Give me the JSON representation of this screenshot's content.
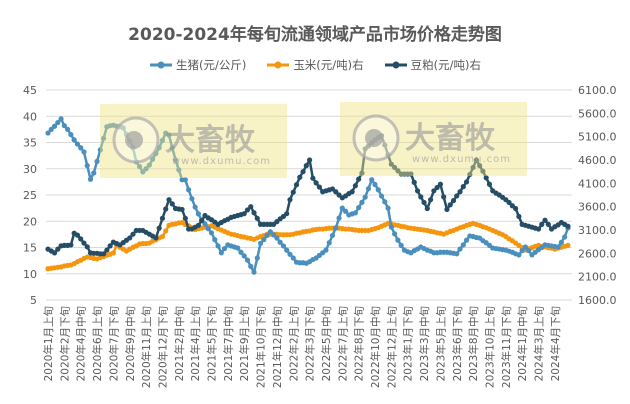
{
  "chart_data": {
    "type": "line",
    "title": "2020-2024年每旬流通领域产品市场价格走势图",
    "xlabel": "",
    "ylabel": "",
    "grid": true,
    "legend_position": "top",
    "y_left": {
      "min": 5,
      "max": 45,
      "step": 5,
      "ticks": [
        "5",
        "10",
        "15",
        "20",
        "25",
        "30",
        "35",
        "40",
        "45"
      ]
    },
    "y_right": {
      "min": 1600,
      "max": 6100,
      "step": 500,
      "ticks": [
        "1600.0",
        "2100.0",
        "2600.0",
        "3100.0",
        "3600.0",
        "4100.0",
        "4600.0",
        "5100.0",
        "5600.0",
        "6100.0"
      ]
    },
    "x_tick_every": 5,
    "x_tick_labels": [
      "2020年1月上旬",
      "2020年2月下旬",
      "2020年4月中旬",
      "2020年6月上旬",
      "2020年7月下旬",
      "2020年9月中旬",
      "2020年11月上旬",
      "2020年12月下旬",
      "2021年2月中旬",
      "2021年4月上旬",
      "2021年5月下旬",
      "2021年7月中旬",
      "2021年9月上旬",
      "2021年10月下旬",
      "2021年12月中旬",
      "2022年2月上旬",
      "2022年3月下旬",
      "2022年5月中旬",
      "2022年7月上旬",
      "2022年8月下旬",
      "2022年10月中旬",
      "2022年12月上旬",
      "2023年1月下旬",
      "2023年3月中旬",
      "2023年5月上旬",
      "2023年6月下旬",
      "2023年8月中旬",
      "2023年10月上旬",
      "2023年11月下旬",
      "2024年1月中旬",
      "2024年3月上旬",
      "2024年4月下旬"
    ],
    "series": [
      {
        "name": "生猪(元/公斤)",
        "axis": "left",
        "color": "#4a8fbd",
        "values": [
          36.8,
          37.5,
          38.1,
          38.8,
          39.5,
          38.2,
          37.5,
          36.5,
          35.5,
          34.7,
          34.0,
          33.2,
          30.6,
          28.0,
          29.2,
          31.4,
          33.6,
          35.8,
          38.0,
          38.2,
          38.3,
          38.1,
          38.0,
          37.8,
          36.5,
          35.3,
          34.0,
          31.3,
          30.4,
          29.4,
          30.0,
          30.7,
          31.8,
          32.9,
          34.0,
          35.4,
          36.8,
          36.4,
          34.0,
          31.7,
          29.8,
          27.9,
          27.9,
          26.0,
          24.3,
          22.7,
          21.4,
          20.2,
          19.5,
          18.6,
          17.8,
          16.5,
          15.3,
          14.0,
          14.8,
          15.5,
          15.3,
          15.1,
          14.9,
          14.1,
          13.4,
          12.6,
          11.4,
          10.3,
          13.0,
          15.8,
          16.5,
          17.3,
          18.0,
          17.4,
          16.8,
          16.0,
          15.3,
          14.5,
          13.7,
          13.0,
          12.2,
          12.1,
          12.1,
          12.0,
          12.3,
          12.7,
          13.0,
          13.5,
          14.0,
          14.5,
          15.9,
          17.3,
          18.7,
          20.6,
          22.5,
          21.9,
          21.2,
          21.4,
          21.6,
          22.6,
          23.6,
          24.6,
          26.2,
          27.9,
          27.0,
          26.0,
          24.8,
          23.7,
          22.5,
          18.9,
          17.6,
          16.4,
          15.4,
          14.5,
          14.2,
          14.0,
          14.4,
          14.7,
          15.1,
          14.8,
          14.5,
          14.3,
          14.0,
          14.0,
          14.1,
          14.1,
          14.1,
          14.0,
          13.9,
          13.8,
          14.7,
          15.5,
          16.4,
          17.2,
          17.1,
          16.9,
          16.8,
          16.3,
          15.9,
          15.4,
          14.9,
          14.8,
          14.7,
          14.6,
          14.5,
          14.3,
          14.1,
          13.8,
          13.6,
          14.4,
          15.1,
          14.4,
          13.6,
          14.1,
          14.6,
          15.0,
          15.5,
          15.4,
          15.3,
          15.2,
          15.1,
          16.0,
          17.0,
          18.7
        ]
      },
      {
        "name": "玉米(元/吨)右",
        "axis": "right",
        "color": "#f5960f",
        "values": [
          2270,
          2280,
          2290,
          2300,
          2310,
          2330,
          2340,
          2350,
          2380,
          2420,
          2450,
          2490,
          2520,
          2510,
          2490,
          2480,
          2510,
          2530,
          2560,
          2580,
          2610,
          2770,
          2730,
          2690,
          2650,
          2690,
          2730,
          2760,
          2800,
          2810,
          2810,
          2820,
          2860,
          2890,
          2930,
          2960,
          3080,
          3200,
          3220,
          3230,
          3250,
          3260,
          3220,
          3190,
          3150,
          3110,
          3130,
          3140,
          3160,
          3170,
          3190,
          3160,
          3130,
          3100,
          3070,
          3040,
          3010,
          3000,
          2980,
          2960,
          2950,
          2930,
          2920,
          2900,
          2930,
          2960,
          2980,
          3010,
          3010,
          3010,
          3010,
          3000,
          3000,
          3000,
          3000,
          3010,
          3030,
          3040,
          3060,
          3070,
          3080,
          3100,
          3110,
          3120,
          3120,
          3130,
          3140,
          3140,
          3150,
          3140,
          3130,
          3120,
          3120,
          3110,
          3100,
          3090,
          3090,
          3090,
          3090,
          3110,
          3130,
          3150,
          3180,
          3210,
          3240,
          3230,
          3210,
          3200,
          3180,
          3170,
          3150,
          3140,
          3130,
          3120,
          3110,
          3100,
          3090,
          3070,
          3060,
          3040,
          3030,
          3010,
          3040,
          3070,
          3090,
          3120,
          3150,
          3170,
          3200,
          3220,
          3240,
          3220,
          3200,
          3170,
          3150,
          3120,
          3090,
          3060,
          3030,
          3000,
          2960,
          2910,
          2870,
          2820,
          2770,
          2720,
          2670,
          2700,
          2720,
          2750,
          2770,
          2750,
          2740,
          2720,
          2710,
          2690,
          2710,
          2730,
          2750,
          2770
        ]
      },
      {
        "name": "豆粕(元/吨)右",
        "axis": "right",
        "color": "#264d66",
        "values": [
          2690,
          2650,
          2610,
          2690,
          2760,
          2770,
          2770,
          2780,
          3030,
          2990,
          2910,
          2820,
          2740,
          2610,
          2600,
          2600,
          2590,
          2590,
          2670,
          2760,
          2840,
          2810,
          2780,
          2830,
          2880,
          2930,
          3010,
          3090,
          3090,
          3090,
          3050,
          3010,
          2970,
          2930,
          3140,
          3350,
          3550,
          3750,
          3660,
          3560,
          3550,
          3540,
          3350,
          3120,
          3120,
          3160,
          3200,
          3300,
          3410,
          3360,
          3320,
          3270,
          3220,
          3260,
          3300,
          3330,
          3370,
          3390,
          3410,
          3430,
          3450,
          3530,
          3600,
          3470,
          3350,
          3220,
          3220,
          3220,
          3220,
          3220,
          3280,
          3340,
          3390,
          3450,
          3750,
          3910,
          4070,
          4230,
          4350,
          4480,
          4600,
          4210,
          4110,
          4020,
          3920,
          3940,
          3960,
          3980,
          3920,
          3850,
          3790,
          3830,
          3880,
          3920,
          4050,
          4190,
          4320,
          4840,
          4900,
          4970,
          5030,
          5080,
          5120,
          4920,
          4710,
          4510,
          4440,
          4370,
          4300,
          4300,
          4300,
          4300,
          4120,
          3940,
          3810,
          3690,
          3560,
          3750,
          3940,
          4010,
          4080,
          3810,
          3540,
          3640,
          3730,
          3830,
          3920,
          4030,
          4130,
          4290,
          4440,
          4600,
          4480,
          4360,
          4220,
          4080,
          3940,
          3890,
          3850,
          3800,
          3750,
          3690,
          3620,
          3560,
          3390,
          3220,
          3200,
          3180,
          3160,
          3140,
          3120,
          3220,
          3310,
          3220,
          3120,
          3170,
          3210,
          3260,
          3220,
          3180
        ]
      }
    ],
    "gridline_color": "#d9d9d9"
  },
  "watermark": {
    "brand": "大畜牧",
    "url": "www.dxumu.com"
  }
}
